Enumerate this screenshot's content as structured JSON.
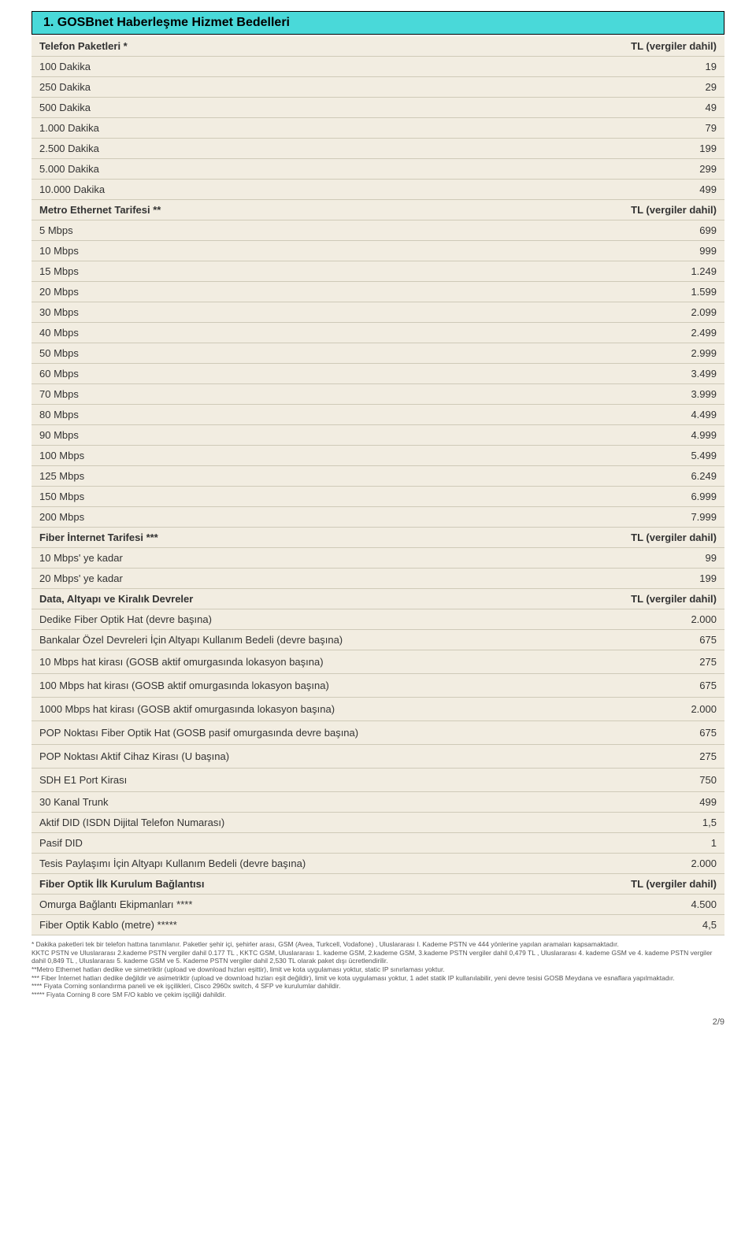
{
  "title": "1. GOSBnet Haberleşme Hizmet Bedelleri",
  "title_bg": "#49d9d9",
  "table_bg": "#f2ede1",
  "rule_color": "#cfcab8",
  "sections": [
    {
      "header": {
        "label": "Telefon Paketleri *",
        "value": "TL (vergiler dahil)"
      },
      "rows": [
        {
          "label": "100 Dakika",
          "value": "19"
        },
        {
          "label": "250 Dakika",
          "value": "29"
        },
        {
          "label": "500 Dakika",
          "value": "49"
        },
        {
          "label": "1.000 Dakika",
          "value": "79"
        },
        {
          "label": "2.500 Dakika",
          "value": "199"
        },
        {
          "label": "5.000 Dakika",
          "value": "299"
        },
        {
          "label": "10.000 Dakika",
          "value": "499"
        }
      ]
    },
    {
      "header": {
        "label": "Metro Ethernet Tarifesi **",
        "value": "TL (vergiler dahil)"
      },
      "rows": [
        {
          "label": "5  Mbps",
          "value": "699"
        },
        {
          "label": "10 Mbps",
          "value": "999"
        },
        {
          "label": "15 Mbps",
          "value": "1.249"
        },
        {
          "label": "20 Mbps",
          "value": "1.599"
        },
        {
          "label": "30 Mbps",
          "value": "2.099"
        },
        {
          "label": "40 Mbps",
          "value": "2.499"
        },
        {
          "label": "50 Mbps",
          "value": "2.999"
        },
        {
          "label": "60 Mbps",
          "value": "3.499"
        },
        {
          "label": "70 Mbps",
          "value": "3.999"
        },
        {
          "label": "80 Mbps",
          "value": "4.499"
        },
        {
          "label": "90 Mbps",
          "value": "4.999"
        },
        {
          "label": "100 Mbps",
          "value": "5.499"
        },
        {
          "label": "125 Mbps",
          "value": "6.249"
        },
        {
          "label": "150 Mbps",
          "value": "6.999"
        },
        {
          "label": "200 Mbps",
          "value": "7.999"
        }
      ]
    },
    {
      "header": {
        "label": "Fiber İnternet Tarifesi ***",
        "value": "TL (vergiler dahil)"
      },
      "rows": [
        {
          "label": "10 Mbps' ye kadar",
          "value": "99"
        },
        {
          "label": "20 Mbps' ye kadar",
          "value": "199"
        }
      ]
    },
    {
      "header": {
        "label": "Data, Altyapı ve Kiralık Devreler",
        "value": "TL (vergiler dahil)"
      },
      "rows": [
        {
          "label": "Dedike Fiber Optik Hat (devre başına)",
          "value": "2.000"
        },
        {
          "label": "Bankalar Özel Devreleri İçin Altyapı Kullanım Bedeli (devre başına)",
          "value": "675"
        },
        {
          "label": "10 Mbps hat kirası (GOSB aktif omurgasında lokasyon başına)",
          "value": "275",
          "sep": true
        },
        {
          "label": "100 Mbps hat kirası (GOSB aktif omurgasında lokasyon başına)",
          "value": "675",
          "sep": true
        },
        {
          "label": "1000 Mbps hat kirası (GOSB aktif omurgasında lokasyon başına)",
          "value": "2.000",
          "sep": true
        },
        {
          "label": "POP Noktası Fiber Optik Hat (GOSB pasif omurgasında devre başına)",
          "value": "675",
          "sep": true
        },
        {
          "label": "POP Noktası Aktif Cihaz Kirası (U başına)",
          "value": "275",
          "sep": true
        },
        {
          "label": "SDH E1 Port Kirası",
          "value": "750",
          "sep": true
        },
        {
          "label": "30 Kanal Trunk",
          "value": "499"
        },
        {
          "label": "Aktif DID (ISDN Dijital Telefon Numarası)",
          "value": "1,5"
        },
        {
          "label": "Pasif DID",
          "value": "1"
        },
        {
          "label": "Tesis Paylaşımı İçin Altyapı Kullanım Bedeli (devre başına)",
          "value": "2.000"
        }
      ]
    },
    {
      "header": {
        "label": "Fiber Optik İlk Kurulum Bağlantısı",
        "value": "TL (vergiler dahil)"
      },
      "rows": [
        {
          "label": "Omurga Bağlantı Ekipmanları ****",
          "value": "4.500"
        },
        {
          "label": "Fiber Optik Kablo (metre) *****",
          "value": "4,5"
        }
      ]
    }
  ],
  "footnotes": [
    "* Dakika paketleri tek bir telefon hattına tanımlanır. Paketler şehir içi, şehirler arası, GSM (Avea, Turkcell, Vodafone) , Uluslararası I. Kademe PSTN ve 444 yönlerine yapılan aramaları kapsamaktadır.",
    "KKTC PSTN ve Uluslararası 2.kademe PSTN vergiler dahil 0.177 TL , KKTC GSM, Uluslararası 1. kademe GSM, 2.kademe GSM, 3.kademe PSTN vergiler dahil 0,479 TL , Uluslararası 4. kademe GSM ve 4. kademe PSTN vergiler dahil 0,849 TL , Uluslararası 5. kademe GSM ve 5. Kademe PSTN vergiler dahil 2,530 TL olarak paket dışı ücretlendirilir.",
    "**Metro Ethernet hatları dedike ve simetriktir (upload ve download hızları eşittir), limit ve kota uygulaması yoktur, static IP sınırlaması yoktur.",
    "*** Fiber İnternet hatları dedike değildir ve asimetriktir (upload ve download hızları eşit değildir), limit ve kota uygulaması yoktur, 1 adet statik IP kullanılabilir, yeni devre tesisi GOSB Meydana ve esnaflara yapılmaktadır.",
    "**** Fiyata Corning sonlandırma paneli ve ek işçilikleri, Cisco 2960x switch, 4 SFP ve kurulumlar dahildir.",
    "***** Fiyata Corning 8 core SM F/O kablo ve çekim işçiliği dahildir."
  ],
  "page_num": "2/9"
}
